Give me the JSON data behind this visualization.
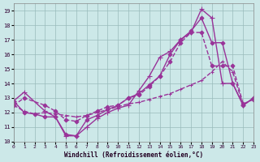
{
  "bg_color": "#cce8e8",
  "grid_color": "#99bbbb",
  "line_color": "#993399",
  "xlabel": "Windchill (Refroidissement éolien,°C)",
  "ylim": [
    10.0,
    19.5
  ],
  "xlim": [
    0,
    23
  ],
  "yticks": [
    10,
    11,
    12,
    13,
    14,
    15,
    16,
    17,
    18,
    19
  ],
  "xticks": [
    0,
    1,
    2,
    3,
    4,
    5,
    6,
    7,
    8,
    9,
    10,
    11,
    12,
    13,
    14,
    15,
    16,
    17,
    18,
    19,
    20,
    21,
    22,
    23
  ],
  "lines": [
    {
      "x": [
        0,
        1,
        3,
        4,
        5,
        6,
        7,
        8,
        9,
        10,
        11,
        12,
        13,
        14,
        15,
        16,
        17,
        18,
        19,
        20,
        21,
        22,
        23
      ],
      "y": [
        12.8,
        13.4,
        12.1,
        11.7,
        10.4,
        10.4,
        11.0,
        11.6,
        12.0,
        12.3,
        12.5,
        13.5,
        14.5,
        15.8,
        16.2,
        17.0,
        17.5,
        19.1,
        18.5,
        14.0,
        14.0,
        12.5,
        13.0
      ],
      "marker": "+",
      "markersize": 4,
      "linestyle": "-",
      "linewidth": 1.0
    },
    {
      "x": [
        0,
        1,
        2,
        3,
        4,
        5,
        6,
        7,
        8,
        9,
        10,
        11,
        12,
        13,
        14,
        15,
        16,
        17,
        18,
        19,
        20,
        21,
        22,
        23
      ],
      "y": [
        12.8,
        12.0,
        11.9,
        11.7,
        11.7,
        10.5,
        10.4,
        11.5,
        11.8,
        12.2,
        12.5,
        13.0,
        13.3,
        13.9,
        14.5,
        16.0,
        17.0,
        17.6,
        18.5,
        16.8,
        16.8,
        14.0,
        12.5,
        13.0
      ],
      "marker": "D",
      "markersize": 2.5,
      "linestyle": "-",
      "linewidth": 1.0
    },
    {
      "x": [
        0,
        1,
        3,
        4,
        5,
        6,
        7,
        8,
        9,
        10,
        11,
        12,
        13,
        14,
        15,
        16,
        17,
        18,
        19,
        20,
        21,
        22,
        23
      ],
      "y": [
        12.5,
        13.0,
        12.5,
        12.1,
        11.5,
        11.4,
        11.8,
        12.1,
        12.4,
        12.5,
        13.0,
        13.2,
        13.8,
        14.5,
        15.5,
        16.8,
        17.5,
        17.5,
        15.2,
        15.2,
        15.2,
        12.6,
        12.9
      ],
      "marker": "D",
      "markersize": 2.5,
      "linestyle": "--",
      "linewidth": 1.0
    },
    {
      "x": [
        0,
        1,
        2,
        3,
        4,
        5,
        6,
        7,
        8,
        9,
        10,
        11,
        12,
        13,
        14,
        15,
        16,
        17,
        18,
        19,
        20,
        21,
        22,
        23
      ],
      "y": [
        12.5,
        12.1,
        11.9,
        12.0,
        11.9,
        11.8,
        11.7,
        11.8,
        12.0,
        12.2,
        12.4,
        12.6,
        12.7,
        12.9,
        13.1,
        13.3,
        13.6,
        13.9,
        14.2,
        14.8,
        15.5,
        14.8,
        12.5,
        13.0
      ],
      "marker": "+",
      "markersize": 3,
      "linestyle": "--",
      "linewidth": 1.0
    }
  ],
  "figsize": [
    3.2,
    2.0
  ],
  "dpi": 100
}
